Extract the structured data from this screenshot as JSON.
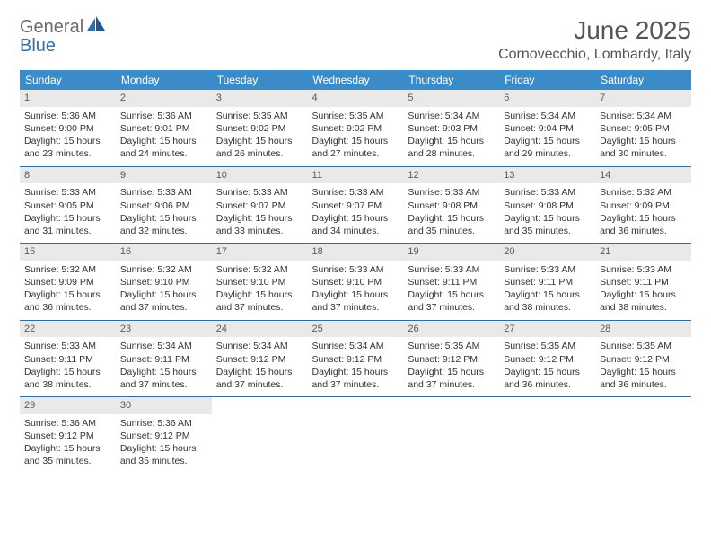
{
  "logo": {
    "general": "General",
    "blue": "Blue"
  },
  "title": "June 2025",
  "location": "Cornovecchio, Lombardy, Italy",
  "colors": {
    "header_bg": "#3b8bc8",
    "header_text": "#ffffff",
    "divider": "#2f6fa6",
    "daynum_bg": "#e9e9e9",
    "logo_gray": "#6a6a6a",
    "logo_blue": "#2f6fa6",
    "text": "#333333"
  },
  "weekdays": [
    "Sunday",
    "Monday",
    "Tuesday",
    "Wednesday",
    "Thursday",
    "Friday",
    "Saturday"
  ],
  "weeks": [
    [
      {
        "n": "1",
        "sr": "5:36 AM",
        "ss": "9:00 PM",
        "dl": "15 hours and 23 minutes."
      },
      {
        "n": "2",
        "sr": "5:36 AM",
        "ss": "9:01 PM",
        "dl": "15 hours and 24 minutes."
      },
      {
        "n": "3",
        "sr": "5:35 AM",
        "ss": "9:02 PM",
        "dl": "15 hours and 26 minutes."
      },
      {
        "n": "4",
        "sr": "5:35 AM",
        "ss": "9:02 PM",
        "dl": "15 hours and 27 minutes."
      },
      {
        "n": "5",
        "sr": "5:34 AM",
        "ss": "9:03 PM",
        "dl": "15 hours and 28 minutes."
      },
      {
        "n": "6",
        "sr": "5:34 AM",
        "ss": "9:04 PM",
        "dl": "15 hours and 29 minutes."
      },
      {
        "n": "7",
        "sr": "5:34 AM",
        "ss": "9:05 PM",
        "dl": "15 hours and 30 minutes."
      }
    ],
    [
      {
        "n": "8",
        "sr": "5:33 AM",
        "ss": "9:05 PM",
        "dl": "15 hours and 31 minutes."
      },
      {
        "n": "9",
        "sr": "5:33 AM",
        "ss": "9:06 PM",
        "dl": "15 hours and 32 minutes."
      },
      {
        "n": "10",
        "sr": "5:33 AM",
        "ss": "9:07 PM",
        "dl": "15 hours and 33 minutes."
      },
      {
        "n": "11",
        "sr": "5:33 AM",
        "ss": "9:07 PM",
        "dl": "15 hours and 34 minutes."
      },
      {
        "n": "12",
        "sr": "5:33 AM",
        "ss": "9:08 PM",
        "dl": "15 hours and 35 minutes."
      },
      {
        "n": "13",
        "sr": "5:33 AM",
        "ss": "9:08 PM",
        "dl": "15 hours and 35 minutes."
      },
      {
        "n": "14",
        "sr": "5:32 AM",
        "ss": "9:09 PM",
        "dl": "15 hours and 36 minutes."
      }
    ],
    [
      {
        "n": "15",
        "sr": "5:32 AM",
        "ss": "9:09 PM",
        "dl": "15 hours and 36 minutes."
      },
      {
        "n": "16",
        "sr": "5:32 AM",
        "ss": "9:10 PM",
        "dl": "15 hours and 37 minutes."
      },
      {
        "n": "17",
        "sr": "5:32 AM",
        "ss": "9:10 PM",
        "dl": "15 hours and 37 minutes."
      },
      {
        "n": "18",
        "sr": "5:33 AM",
        "ss": "9:10 PM",
        "dl": "15 hours and 37 minutes."
      },
      {
        "n": "19",
        "sr": "5:33 AM",
        "ss": "9:11 PM",
        "dl": "15 hours and 37 minutes."
      },
      {
        "n": "20",
        "sr": "5:33 AM",
        "ss": "9:11 PM",
        "dl": "15 hours and 38 minutes."
      },
      {
        "n": "21",
        "sr": "5:33 AM",
        "ss": "9:11 PM",
        "dl": "15 hours and 38 minutes."
      }
    ],
    [
      {
        "n": "22",
        "sr": "5:33 AM",
        "ss": "9:11 PM",
        "dl": "15 hours and 38 minutes."
      },
      {
        "n": "23",
        "sr": "5:34 AM",
        "ss": "9:11 PM",
        "dl": "15 hours and 37 minutes."
      },
      {
        "n": "24",
        "sr": "5:34 AM",
        "ss": "9:12 PM",
        "dl": "15 hours and 37 minutes."
      },
      {
        "n": "25",
        "sr": "5:34 AM",
        "ss": "9:12 PM",
        "dl": "15 hours and 37 minutes."
      },
      {
        "n": "26",
        "sr": "5:35 AM",
        "ss": "9:12 PM",
        "dl": "15 hours and 37 minutes."
      },
      {
        "n": "27",
        "sr": "5:35 AM",
        "ss": "9:12 PM",
        "dl": "15 hours and 36 minutes."
      },
      {
        "n": "28",
        "sr": "5:35 AM",
        "ss": "9:12 PM",
        "dl": "15 hours and 36 minutes."
      }
    ],
    [
      {
        "n": "29",
        "sr": "5:36 AM",
        "ss": "9:12 PM",
        "dl": "15 hours and 35 minutes."
      },
      {
        "n": "30",
        "sr": "5:36 AM",
        "ss": "9:12 PM",
        "dl": "15 hours and 35 minutes."
      },
      null,
      null,
      null,
      null,
      null
    ]
  ],
  "labels": {
    "sunrise": "Sunrise:",
    "sunset": "Sunset:",
    "daylight": "Daylight:"
  }
}
